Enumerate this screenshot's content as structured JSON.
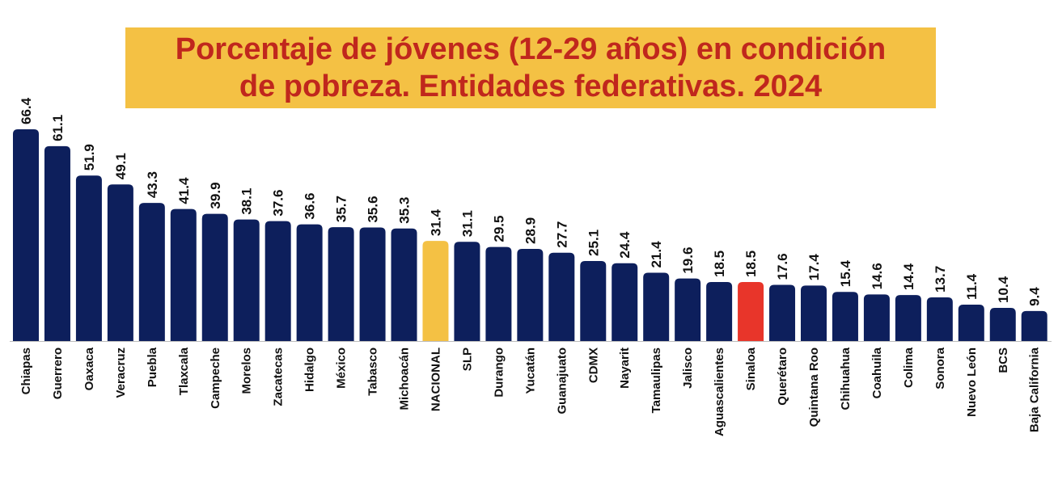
{
  "chart_data": {
    "type": "bar",
    "title_lines": [
      "Porcentaje de jóvenes (12-29 años) en condición",
      "de pobreza. Entidades federativas. 2024"
    ],
    "categories": [
      "Chiapas",
      "Guerrero",
      "Oaxaca",
      "Veracruz",
      "Puebla",
      "Tlaxcala",
      "Campeche",
      "Morelos",
      "Zacatecas",
      "Hidalgo",
      "México",
      "Tabasco",
      "Michoacán",
      "NACIONAL",
      "SLP",
      "Durango",
      "Yucatán",
      "Guanajuato",
      "CDMX",
      "Nayarit",
      "Tamaulipas",
      "Jalisco",
      "Aguascalientes",
      "Sinaloa",
      "Querétaro",
      "Quintana Roo",
      "Chihuahua",
      "Coahuila",
      "Colima",
      "Sonora",
      "Nuevo León",
      "BCS",
      "Baja California"
    ],
    "values": [
      66.4,
      61.1,
      51.9,
      49.1,
      43.3,
      41.4,
      39.9,
      38.1,
      37.6,
      36.6,
      35.7,
      35.6,
      35.3,
      31.4,
      31.1,
      29.5,
      28.9,
      27.7,
      25.1,
      24.4,
      21.4,
      19.6,
      18.5,
      18.5,
      17.6,
      17.4,
      15.4,
      14.6,
      14.4,
      13.7,
      11.4,
      10.4,
      9.4
    ],
    "value_labels": [
      "66.4",
      "61.1",
      "51.9",
      "49.1",
      "43.3",
      "41.4",
      "39.9",
      "38.1",
      "37.6",
      "36.6",
      "35.7",
      "35.6",
      "35.3",
      "31.4",
      "31.1",
      "29.5",
      "28.9",
      "27.7",
      "25.1",
      "24.4",
      "21.4",
      "19.6",
      "18.5",
      "18.5",
      "17.6",
      "17.4",
      "15.4",
      "14.6",
      "14.4",
      "13.7",
      "11.4",
      "10.4",
      "9.4"
    ],
    "ylim": [
      0,
      66.4
    ],
    "grid": false,
    "legend": "none",
    "colors": {
      "default": "#0d1f5c",
      "highlights": {
        "NACIONAL": "#f4c144",
        "Sinaloa": "#e8352a"
      },
      "title_text": "#c0271d",
      "title_background": "#f4c144"
    }
  }
}
